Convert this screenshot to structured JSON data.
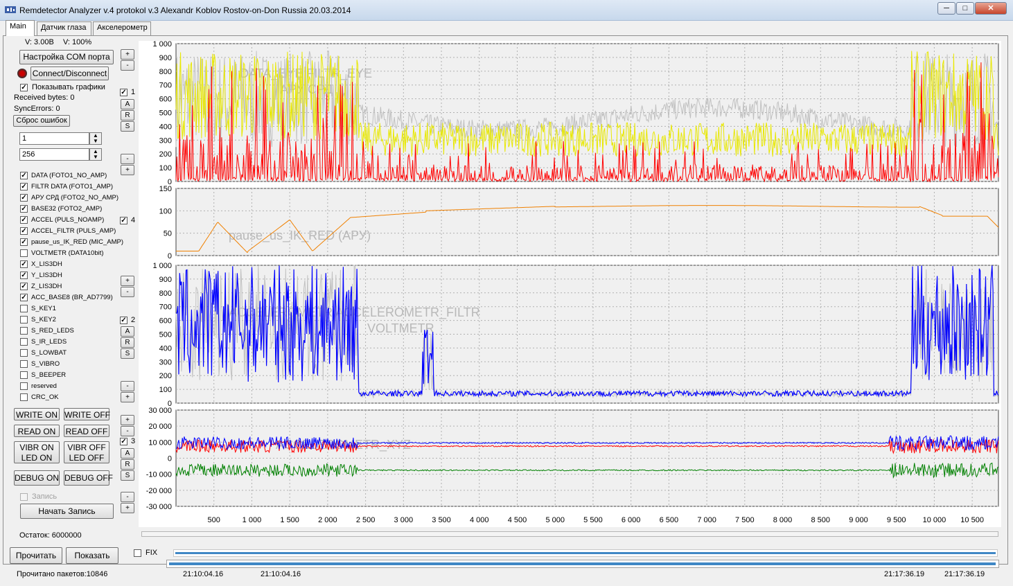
{
  "window": {
    "title": "Remdetector Analyzer v.4 protokol v.3 Alexandr Koblov Rostov-on-Don Russia 20.03.2014",
    "min": "─",
    "max": "□",
    "close": "✕"
  },
  "tabs": [
    {
      "label": "Main"
    },
    {
      "label": "Датчик глаза"
    },
    {
      "label": "Акселерометр"
    }
  ],
  "status": {
    "voltage": "V: 3.00В",
    "percent": "V: 100%",
    "received": "Received bytes: 0",
    "sync_errors": "SyncErrors: 0",
    "remaining": "Остаток: 6000000",
    "packets": "Прочитано пакетов:10846"
  },
  "buttons": {
    "com_settings": "Настройка COM порта",
    "connect": "Connect/Disconnect",
    "reset_errors": "Сброс ошибок",
    "write_on": "WRITE ON",
    "write_off": "WRITE OFF",
    "read_on": "READ ON",
    "read_off": "READ OFF",
    "vibr_on": "VIBR ON",
    "vibr_off": "VIBR OFF",
    "led_on": "LED ON",
    "led_off": "LED OFF",
    "debug_on": "DEBUG ON",
    "debug_off": "DEBUG OFF",
    "start_record": "Начать Запись",
    "read": "Прочитать",
    "show": "Показать",
    "plus": "+",
    "minus": "-",
    "a": "A",
    "r": "R",
    "s": "S"
  },
  "show_graphs": {
    "label": "Показывать графики",
    "checked": true
  },
  "record": {
    "label": "Запись",
    "checked": false
  },
  "fix": {
    "label": "FIX",
    "checked": false
  },
  "inputs": {
    "field1": "1",
    "field2": "256"
  },
  "channels": [
    {
      "label": "DATA (FOTO1_NO_AMP)",
      "checked": true
    },
    {
      "label": "FILTR DATA (FOTO1_AMP)",
      "checked": true
    },
    {
      "label": "АРУ СРД (FOTO2_NO_AMP)",
      "checked": true
    },
    {
      "label": "BASE32 (FOTO2_AMP)",
      "checked": true
    },
    {
      "label": "ACCEL (PULS_NOAMP)",
      "checked": true
    },
    {
      "label": "ACCEL_FILTR (PULS_AMP)",
      "checked": true
    },
    {
      "label": "pause_us_IK_RED (MIC_AMP)",
      "checked": true
    },
    {
      "label": "VOLTMETR (DATA10bit)",
      "checked": false
    },
    {
      "label": "X_LIS3DH",
      "checked": true
    },
    {
      "label": "Y_LIS3DH",
      "checked": true
    },
    {
      "label": "Z_LIS3DH",
      "checked": true
    },
    {
      "label": "ACC_BASE8 (BR_AD7799)",
      "checked": true
    },
    {
      "label": "S_KEY1",
      "checked": false
    },
    {
      "label": "S_KEY2",
      "checked": false
    },
    {
      "label": "S_RED_LEDS",
      "checked": false
    },
    {
      "label": "S_IR_LEDS",
      "checked": false
    },
    {
      "label": "S_LOWBAT",
      "checked": false
    },
    {
      "label": "S_VIBRO",
      "checked": false
    },
    {
      "label": "S_BEEPER",
      "checked": false
    },
    {
      "label": "reserved",
      "checked": false
    },
    {
      "label": "CRC_OK",
      "checked": false
    }
  ],
  "graph_toggles": [
    {
      "label": "1",
      "checked": true
    },
    {
      "label": "4",
      "checked": true
    },
    {
      "label": "2",
      "checked": true
    },
    {
      "label": "3",
      "checked": true
    }
  ],
  "timestamps": {
    "t1": "21:10:04.16",
    "t2": "21:10:04.16",
    "t3": "21:17:36.19",
    "t4": "21:17:36.19"
  },
  "chart_data": [
    {
      "type": "line",
      "watermark": [
        "DATA_EYE   FILTR_EYE",
        "АРУ СРД"
      ],
      "ylim": [
        0,
        1000
      ],
      "yticks": [
        "1 000",
        "900",
        "800",
        "700",
        "600",
        "500",
        "400",
        "300",
        "200",
        "100",
        "0"
      ],
      "series": [
        {
          "color": "#c0c0c0"
        },
        {
          "color": "#e8e800"
        },
        {
          "color": "#ff0000"
        }
      ]
    },
    {
      "type": "line",
      "watermark": [
        "pause_us_IK_RED (АРУ)"
      ],
      "ylim": [
        0,
        150
      ],
      "yticks": [
        "150",
        "100",
        "50",
        "0"
      ],
      "series": [
        {
          "color": "#f08000"
        }
      ]
    },
    {
      "type": "line",
      "watermark": [
        "ACCELEROMETR     ACCELEROMETR_FILTR",
        "VOLTMETR"
      ],
      "ylim": [
        0,
        1000
      ],
      "yticks": [
        "1 000",
        "900",
        "800",
        "700",
        "600",
        "500",
        "400",
        "300",
        "200",
        "100",
        "0"
      ],
      "series": [
        {
          "color": "#c0c0c0"
        },
        {
          "color": "#0000ff"
        }
      ]
    },
    {
      "type": "line",
      "watermark": [
        "ACCELEROMETR_XYZ"
      ],
      "ylim": [
        -30000,
        30000
      ],
      "yticks": [
        "30 000",
        "20 000",
        "10 000",
        "0",
        "-10 000",
        "-20 000",
        "-30 000"
      ],
      "series": [
        {
          "color": "#ff0000"
        },
        {
          "color": "#0000ff"
        },
        {
          "color": "#008000"
        }
      ]
    }
  ],
  "x_axis": {
    "xlim": [
      0,
      10846
    ],
    "ticks": [
      "500",
      "1 000",
      "1 500",
      "2 000",
      "2 500",
      "3 000",
      "3 500",
      "4 000",
      "4 500",
      "5 000",
      "5 500",
      "6 000",
      "6 500",
      "7 000",
      "7 500",
      "8 000",
      "8 500",
      "9 000",
      "9 500",
      "10 000",
      "10 500"
    ]
  }
}
